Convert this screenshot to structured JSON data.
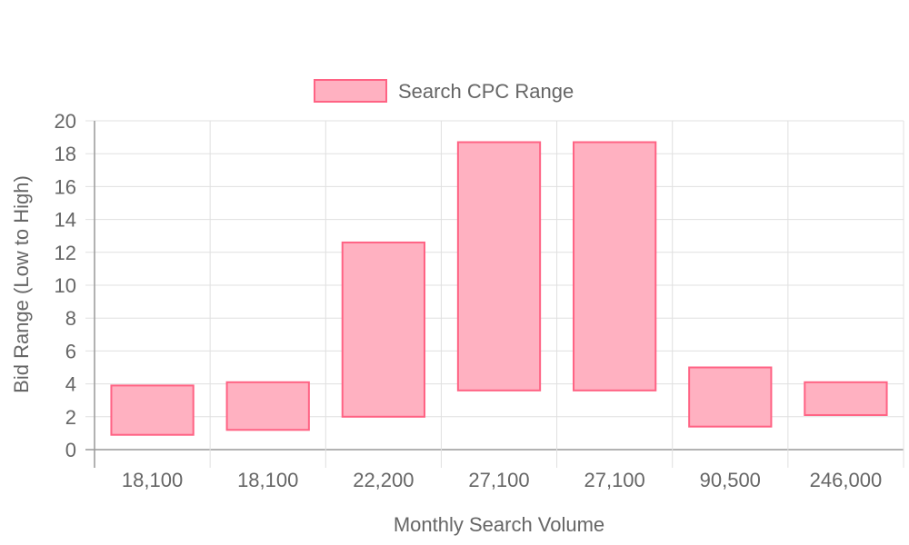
{
  "chart_data": {
    "type": "bar",
    "subtype": "floating-range",
    "categories": [
      "18,100",
      "18,100",
      "22,200",
      "27,100",
      "27,100",
      "90,500",
      "246,000"
    ],
    "series": [
      {
        "name": "Search CPC Range",
        "ranges": [
          [
            0.9,
            3.9
          ],
          [
            1.2,
            4.1
          ],
          [
            2.0,
            12.6
          ],
          [
            3.6,
            18.7
          ],
          [
            3.6,
            18.7
          ],
          [
            1.4,
            5.0
          ],
          [
            2.1,
            4.1
          ]
        ]
      }
    ],
    "xlabel": "Monthly Search Volume",
    "ylabel": "Bid Range (Low to High)",
    "ylim": [
      0,
      20
    ],
    "yticks": [
      "0",
      "2",
      "4",
      "6",
      "8",
      "10",
      "12",
      "14",
      "16",
      "18",
      "20"
    ],
    "grid": true,
    "legend_position": "top",
    "colors": {
      "bar_fill": "#ffb1c1",
      "bar_border": "#ff6384",
      "grid": "#e0e0e0",
      "axis": "#999999",
      "text": "#666666"
    }
  }
}
